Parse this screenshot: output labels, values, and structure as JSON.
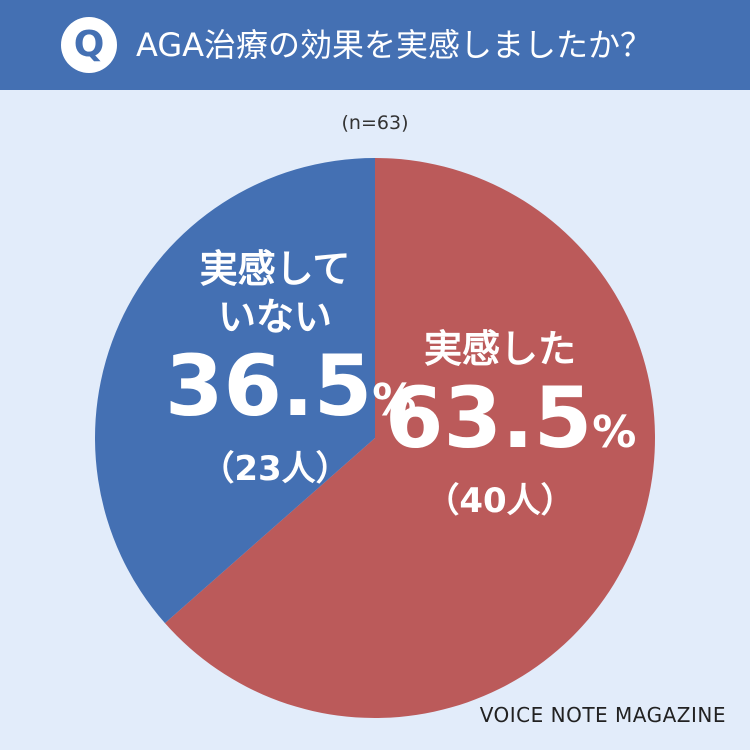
{
  "header": {
    "badge": "Q",
    "question": "AGA治療の効果を実感しましたか？"
  },
  "sample_size": "(n=63)",
  "chart_data": {
    "type": "pie",
    "title": "AGA治療の効果を実感しましたか？",
    "n": 63,
    "slices": [
      {
        "label": "実感した",
        "percent": 63.5,
        "count": 40,
        "percent_text": "63.5",
        "count_text": "（40人）",
        "color": "#bb5a5a"
      },
      {
        "label": "実感していない",
        "label_line1": "実感して",
        "label_line2": "いない",
        "percent": 36.5,
        "count": 23,
        "percent_text": "36.5",
        "count_text": "（23人）",
        "color": "#4470b3"
      }
    ],
    "percent_sign": "%"
  },
  "footer": {
    "credit": "VOICE NOTE MAGAZINE"
  }
}
